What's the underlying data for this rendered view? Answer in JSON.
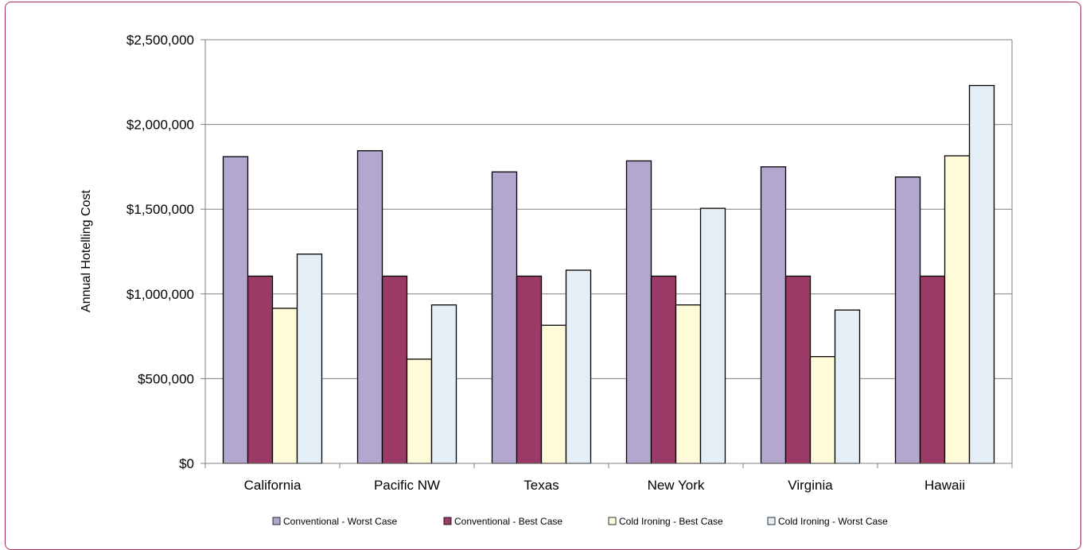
{
  "chart_data": {
    "type": "bar",
    "title": "",
    "xlabel": "",
    "ylabel": "Annual Hotelling Cost",
    "ylim": [
      0,
      2500000
    ],
    "yticks": [
      0,
      500000,
      1000000,
      1500000,
      2000000,
      2500000
    ],
    "ytick_labels": [
      "$0",
      "$500,000",
      "$1,000,000",
      "$1,500,000",
      "$2,000,000",
      "$2,500,000"
    ],
    "grid": true,
    "legend_position": "bottom",
    "categories": [
      "California",
      "Pacific NW",
      "Texas",
      "New York",
      "Virginia",
      "Hawaii"
    ],
    "series": [
      {
        "name": "Conventional - Worst Case",
        "color": "#b3a6cf",
        "values": [
          1810000,
          1845000,
          1720000,
          1785000,
          1750000,
          1690000
        ]
      },
      {
        "name": "Conventional - Best Case",
        "color": "#9b3a66",
        "values": [
          1105000,
          1105000,
          1105000,
          1105000,
          1105000,
          1105000
        ]
      },
      {
        "name": "Cold Ironing - Best Case",
        "color": "#fffbd8",
        "values": [
          915000,
          615000,
          815000,
          935000,
          630000,
          1815000
        ]
      },
      {
        "name": "Cold Ironing - Worst Case",
        "color": "#e3eef7",
        "values": [
          1235000,
          935000,
          1140000,
          1505000,
          905000,
          2230000
        ]
      }
    ]
  }
}
